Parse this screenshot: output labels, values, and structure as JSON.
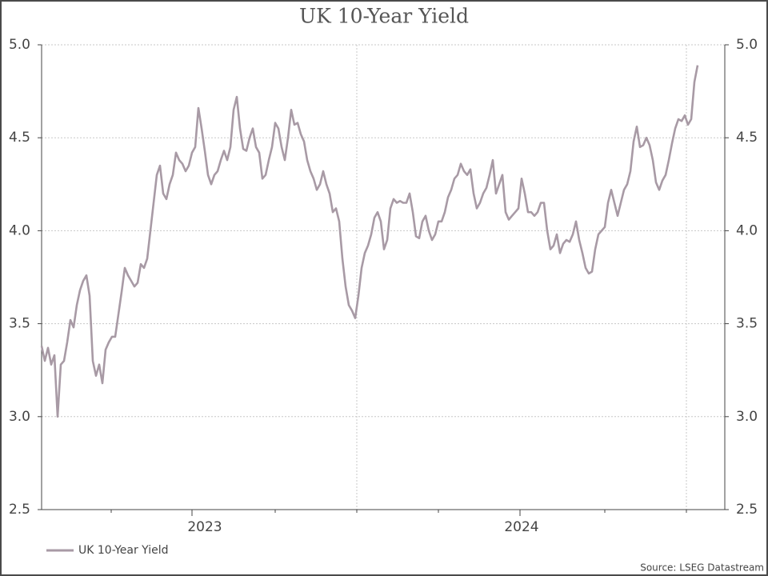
{
  "chart_data": {
    "type": "line",
    "title": "UK 10-Year Yield",
    "categories": [
      null,
      null,
      null,
      null,
      null,
      null,
      null,
      null,
      null,
      null,
      null,
      null,
      null,
      null,
      null,
      null,
      null,
      null,
      null,
      null,
      null,
      null,
      null,
      null,
      null,
      null,
      null,
      null,
      null,
      null,
      null,
      null,
      null,
      null,
      null,
      null,
      null,
      null,
      null,
      null,
      null,
      null,
      null,
      null,
      null,
      null,
      null,
      null,
      null,
      null,
      null,
      "2023",
      null,
      null,
      null,
      null,
      null,
      null,
      null,
      null,
      null,
      null,
      null,
      null,
      null,
      null,
      null,
      null,
      null,
      null,
      null,
      null,
      null,
      null,
      null,
      null,
      null,
      null,
      null,
      null,
      null,
      null,
      null,
      null,
      null,
      null,
      null,
      null,
      null,
      null,
      null,
      null,
      null,
      null,
      null,
      null,
      null,
      null,
      null,
      null,
      null,
      null,
      null,
      null,
      null,
      null,
      null,
      null,
      null,
      null,
      null,
      null,
      null,
      null,
      null,
      null,
      null,
      null,
      null,
      null,
      null,
      null,
      null,
      null,
      null,
      null,
      null,
      null,
      null,
      null,
      null,
      null,
      null,
      null,
      null,
      null,
      null,
      null,
      null,
      null,
      null,
      null,
      null,
      null,
      null,
      null,
      null,
      null,
      null,
      null,
      "2024",
      null,
      null,
      null,
      null,
      null,
      null,
      null,
      null,
      null,
      null,
      null,
      null,
      null,
      null,
      null,
      null,
      null,
      null,
      null,
      null,
      null,
      null,
      null,
      null,
      null,
      null,
      null,
      null,
      null,
      null,
      null,
      null,
      null,
      null,
      null,
      null,
      null,
      null,
      null,
      null,
      null,
      null,
      null,
      null,
      null,
      null,
      null,
      null,
      null,
      null,
      null,
      null,
      null,
      null,
      null
    ],
    "series": [
      {
        "name": "UK 10-Year Yield",
        "color": "#a89aa5",
        "values": [
          3.38,
          3.3,
          3.37,
          3.28,
          3.33,
          3.0,
          3.28,
          3.3,
          3.4,
          3.52,
          3.48,
          3.6,
          3.68,
          3.73,
          3.76,
          3.65,
          3.3,
          3.22,
          3.28,
          3.18,
          3.36,
          3.4,
          3.43,
          3.43,
          3.55,
          3.67,
          3.8,
          3.76,
          3.73,
          3.7,
          3.72,
          3.82,
          3.8,
          3.85,
          4.0,
          4.15,
          4.3,
          4.35,
          4.2,
          4.17,
          4.25,
          4.3,
          4.42,
          4.38,
          4.36,
          4.32,
          4.35,
          4.42,
          4.45,
          4.66,
          4.55,
          4.43,
          4.3,
          4.25,
          4.3,
          4.32,
          4.38,
          4.43,
          4.38,
          4.45,
          4.65,
          4.72,
          4.55,
          4.44,
          4.43,
          4.5,
          4.55,
          4.45,
          4.42,
          4.28,
          4.3,
          4.38,
          4.45,
          4.58,
          4.55,
          4.45,
          4.38,
          4.5,
          4.65,
          4.57,
          4.58,
          4.52,
          4.48,
          4.38,
          4.32,
          4.28,
          4.22,
          4.25,
          4.32,
          4.25,
          4.2,
          4.1,
          4.12,
          4.05,
          3.85,
          3.7,
          3.6,
          3.57,
          3.53,
          3.65,
          3.8,
          3.88,
          3.92,
          3.98,
          4.07,
          4.1,
          4.05,
          3.9,
          3.95,
          4.12,
          4.17,
          4.15,
          4.16,
          4.15,
          4.15,
          4.2,
          4.1,
          3.97,
          3.96,
          4.05,
          4.08,
          4.0,
          3.95,
          3.98,
          4.05,
          4.05,
          4.1,
          4.18,
          4.22,
          4.28,
          4.3,
          4.36,
          4.32,
          4.3,
          4.33,
          4.2,
          4.12,
          4.15,
          4.2,
          4.23,
          4.3,
          4.38,
          4.2,
          4.25,
          4.3,
          4.1,
          4.06,
          4.08,
          4.1,
          4.12,
          4.28,
          4.2,
          4.1,
          4.1,
          4.08,
          4.1,
          4.15,
          4.15,
          4.0,
          3.9,
          3.92,
          3.98,
          3.88,
          3.93,
          3.95,
          3.94,
          3.98,
          4.05,
          3.95,
          3.88,
          3.8,
          3.77,
          3.78,
          3.9,
          3.98,
          4.0,
          4.02,
          4.15,
          4.22,
          4.15,
          4.08,
          4.15,
          4.22,
          4.25,
          4.32,
          4.48,
          4.56,
          4.45,
          4.46,
          4.5,
          4.46,
          4.38,
          4.26,
          4.22,
          4.27,
          4.3,
          4.38,
          4.47,
          4.55,
          4.6,
          4.59,
          4.62,
          4.57,
          4.6,
          4.8,
          4.89
        ]
      }
    ],
    "ylim": [
      2.5,
      5.0
    ],
    "yticks": [
      {
        "value": 2.5,
        "label": "2.5"
      },
      {
        "value": 3,
        "label": "3.0"
      },
      {
        "value": 3.5,
        "label": "3.5"
      },
      {
        "value": 4,
        "label": "4.0"
      },
      {
        "value": 4.5,
        "label": "4.5"
      },
      {
        "value": 5,
        "label": "5.0"
      }
    ],
    "grid": true,
    "source": "Source: LSEG Datastream"
  }
}
